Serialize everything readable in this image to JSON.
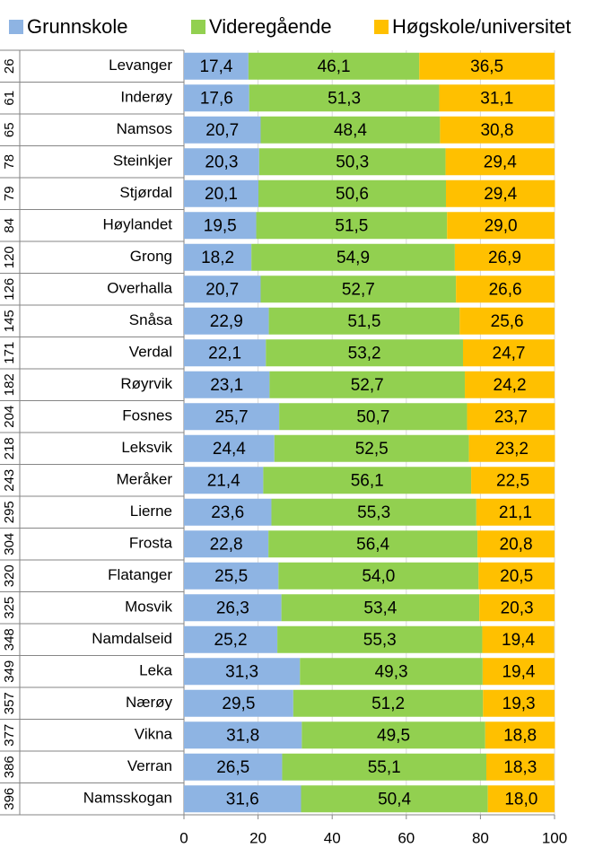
{
  "chart_data": {
    "type": "stacked_barh",
    "categories": [
      "Levanger",
      "Inderøy",
      "Namsos",
      "Steinkjer",
      "Stjørdal",
      "Høylandet",
      "Grong",
      "Overhalla",
      "Snåsa",
      "Verdal",
      "Røyrvik",
      "Fosnes",
      "Leksvik",
      "Meråker",
      "Lierne",
      "Frosta",
      "Flatanger",
      "Mosvik",
      "Namdalseid",
      "Leka",
      "Nærøy",
      "Vikna",
      "Verran",
      "Namsskogan"
    ],
    "ranks": [
      26,
      61,
      65,
      78,
      79,
      84,
      120,
      126,
      145,
      171,
      182,
      204,
      218,
      243,
      295,
      304,
      320,
      325,
      348,
      349,
      357,
      377,
      386,
      396
    ],
    "series": [
      {
        "name": "Grunnskole",
        "color": "#8eb4e3",
        "values": [
          17.4,
          17.6,
          20.7,
          20.3,
          20.1,
          19.5,
          18.2,
          20.7,
          22.9,
          22.1,
          23.1,
          25.7,
          24.4,
          21.4,
          23.6,
          22.8,
          25.5,
          26.3,
          25.2,
          31.3,
          29.5,
          31.8,
          26.5,
          31.6
        ],
        "value_labels": [
          "17,4",
          "17,6",
          "20,7",
          "20,3",
          "20,1",
          "19,5",
          "18,2",
          "20,7",
          "22,9",
          "22,1",
          "23,1",
          "25,7",
          "24,4",
          "21,4",
          "23,6",
          "22,8",
          "25,5",
          "26,3",
          "25,2",
          "31,3",
          "29,5",
          "31,8",
          "26,5",
          "31,6"
        ]
      },
      {
        "name": "Videregående",
        "color": "#92d050",
        "values": [
          46.1,
          51.3,
          48.4,
          50.3,
          50.6,
          51.5,
          54.9,
          52.7,
          51.5,
          53.2,
          52.7,
          50.7,
          52.5,
          56.1,
          55.3,
          56.4,
          54.0,
          53.4,
          55.3,
          49.3,
          51.2,
          49.5,
          55.1,
          50.4
        ],
        "value_labels": [
          "46,1",
          "51,3",
          "48,4",
          "50,3",
          "50,6",
          "51,5",
          "54,9",
          "52,7",
          "51,5",
          "53,2",
          "52,7",
          "50,7",
          "52,5",
          "56,1",
          "55,3",
          "56,4",
          "54,0",
          "53,4",
          "55,3",
          "49,3",
          "51,2",
          "49,5",
          "55,1",
          "50,4"
        ]
      },
      {
        "name": "Høgskole/universitet",
        "color": "#ffc000",
        "values": [
          36.5,
          31.1,
          30.8,
          29.4,
          29.4,
          29.0,
          26.9,
          26.6,
          25.6,
          24.7,
          24.2,
          23.7,
          23.2,
          22.5,
          21.1,
          20.8,
          20.5,
          20.3,
          19.4,
          19.4,
          19.3,
          18.8,
          18.3,
          18.0
        ],
        "value_labels": [
          "36,5",
          "31,1",
          "30,8",
          "29,4",
          "29,4",
          "29,0",
          "26,9",
          "26,6",
          "25,6",
          "24,7",
          "24,2",
          "23,7",
          "23,2",
          "22,5",
          "21,1",
          "20,8",
          "20,5",
          "20,3",
          "19,4",
          "19,4",
          "19,3",
          "18,8",
          "18,3",
          "18,0"
        ]
      }
    ],
    "xlim": [
      0,
      100
    ],
    "xticks": [
      0,
      20,
      40,
      60,
      80,
      100
    ],
    "grid": true
  }
}
